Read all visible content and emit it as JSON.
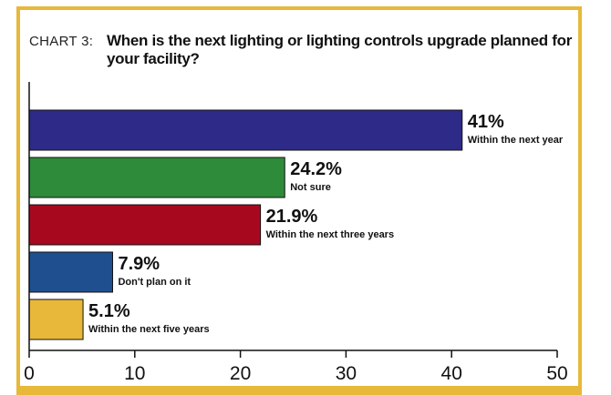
{
  "chart_label": "CHART 3:",
  "chart_data": {
    "type": "bar",
    "orientation": "horizontal",
    "title": "When is the next lighting or lighting controls upgrade planned for your facility?",
    "categories": [
      "Within the next year",
      "Not sure",
      "Within the next three years",
      "Don't plan on it",
      "Within the next five years"
    ],
    "values": [
      41,
      24.2,
      21.9,
      7.9,
      5.1
    ],
    "value_labels": [
      "41%",
      "24.2%",
      "21.9%",
      "7.9%",
      "5.1%"
    ],
    "colors": [
      "#2e2a87",
      "#2e8b3a",
      "#a8081e",
      "#1f4f8f",
      "#e8b83a"
    ],
    "xlim": [
      0,
      50
    ],
    "xticks": [
      0,
      10,
      20,
      30,
      40,
      50
    ],
    "xtick_labels": [
      "0",
      "10",
      "20",
      "30",
      "40",
      "50"
    ],
    "grid": false
  },
  "frame_color": "#e8b83a"
}
